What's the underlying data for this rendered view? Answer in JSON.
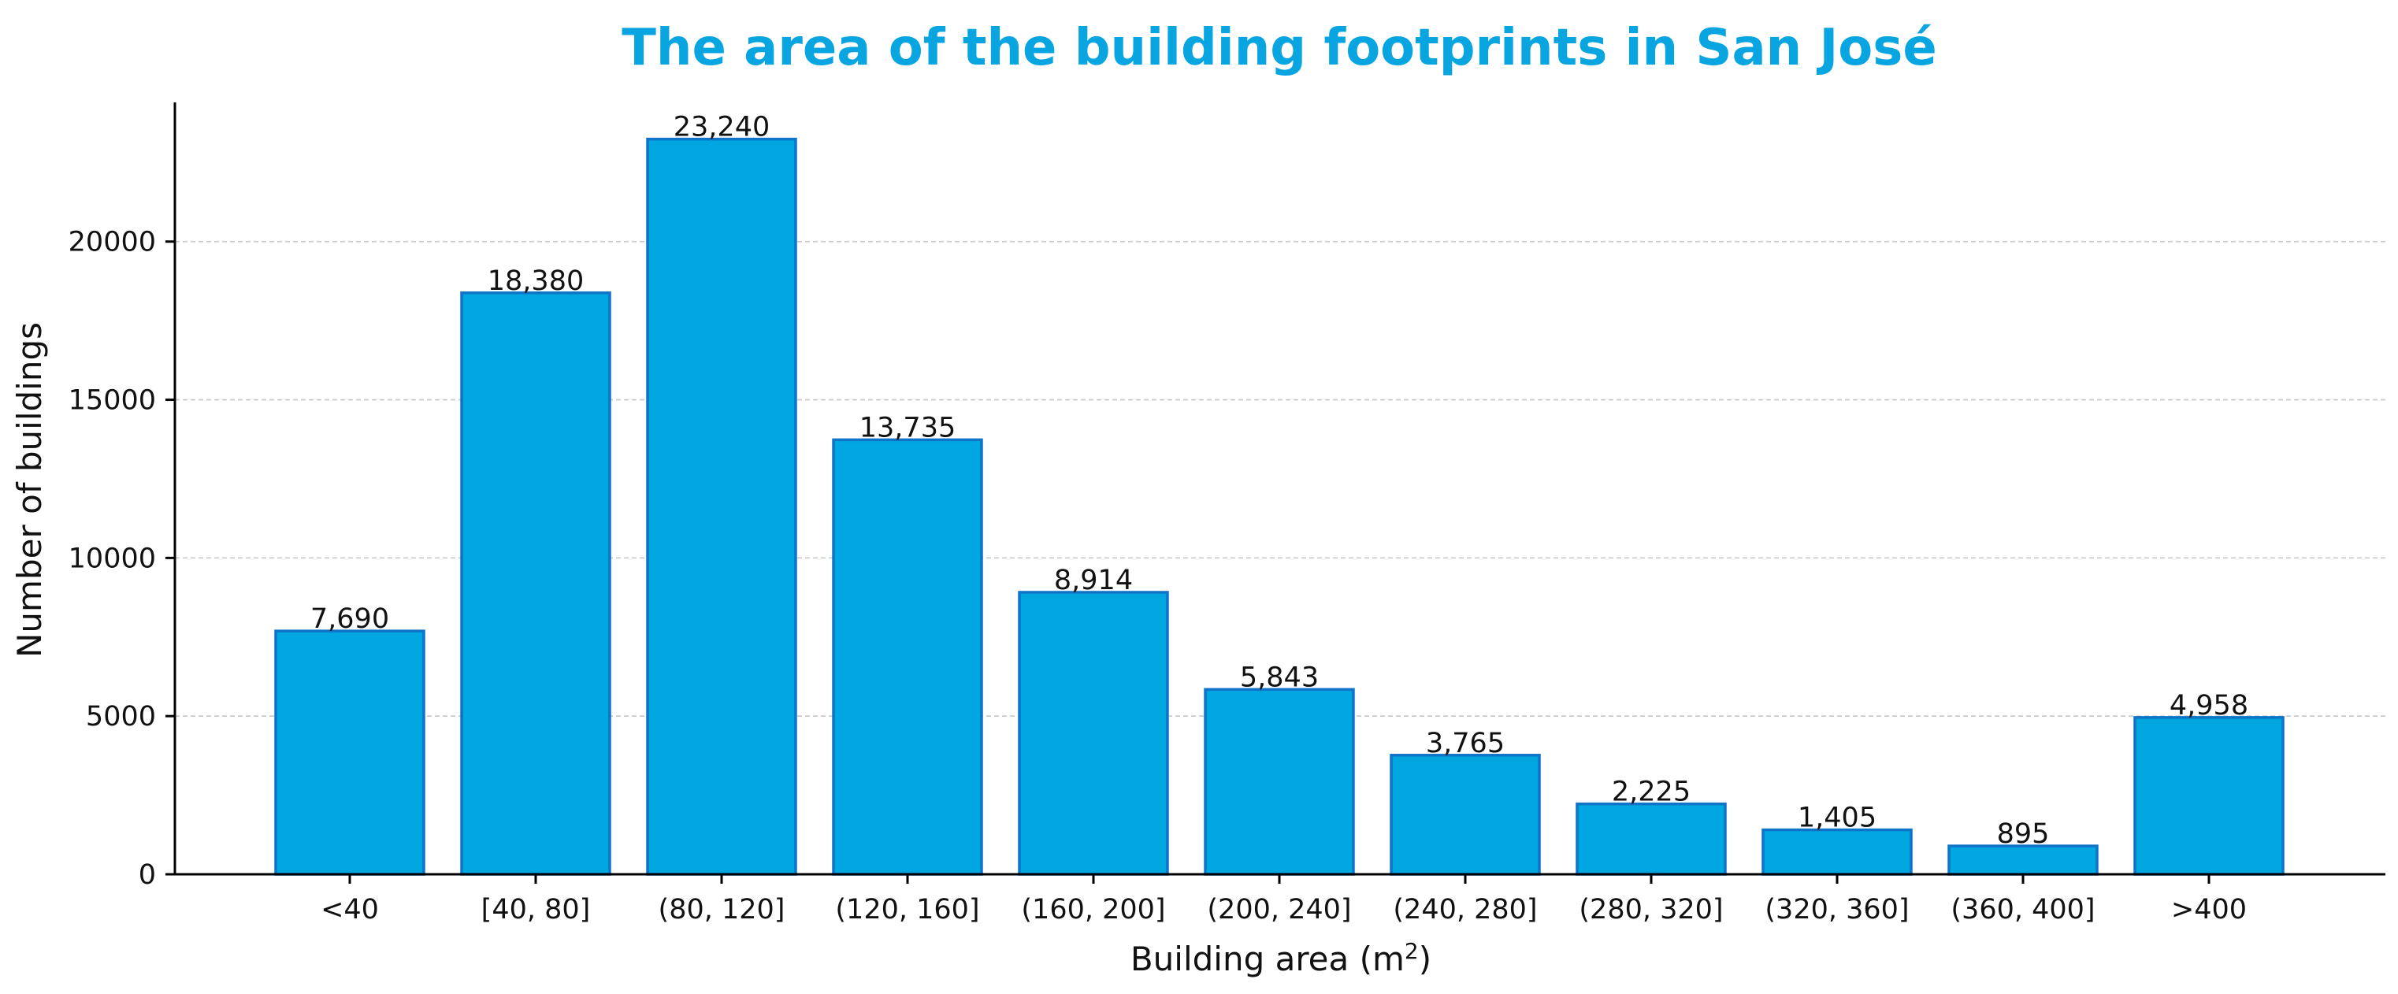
{
  "chart_data": {
    "type": "bar",
    "title": "The area of the building footprints in San José",
    "xlabel": "Building area (m",
    "xlabel_superscript": "2",
    "xlabel_suffix": ")",
    "ylabel": "Number of buildings",
    "categories": [
      "<40",
      "[40, 80]",
      "(80, 120]",
      "(120, 160]",
      "(160, 200]",
      "(200, 240]",
      "(240, 280]",
      "(280, 320]",
      "(320, 360]",
      "(360, 400]",
      ">400"
    ],
    "values": [
      7690,
      18380,
      23240,
      13735,
      8914,
      5843,
      3765,
      2225,
      1405,
      895,
      4958
    ],
    "value_labels": [
      "7,690",
      "18,380",
      "23,240",
      "13,735",
      "8,914",
      "5,843",
      "3,765",
      "2,225",
      "1,405",
      "895",
      "4,958"
    ],
    "ylim": [
      0,
      24400
    ],
    "yticks": [
      0,
      5000,
      10000,
      15000,
      20000
    ],
    "ytick_labels": [
      "0",
      "5000",
      "10000",
      "15000",
      "20000"
    ],
    "grid": "horizontal dashed",
    "colors": {
      "title": "#08a5e0",
      "bar_fill": "#00a6df",
      "bar_edge": "#0f74c8",
      "grid": "#c8c8c8",
      "axis": "#000000"
    }
  }
}
